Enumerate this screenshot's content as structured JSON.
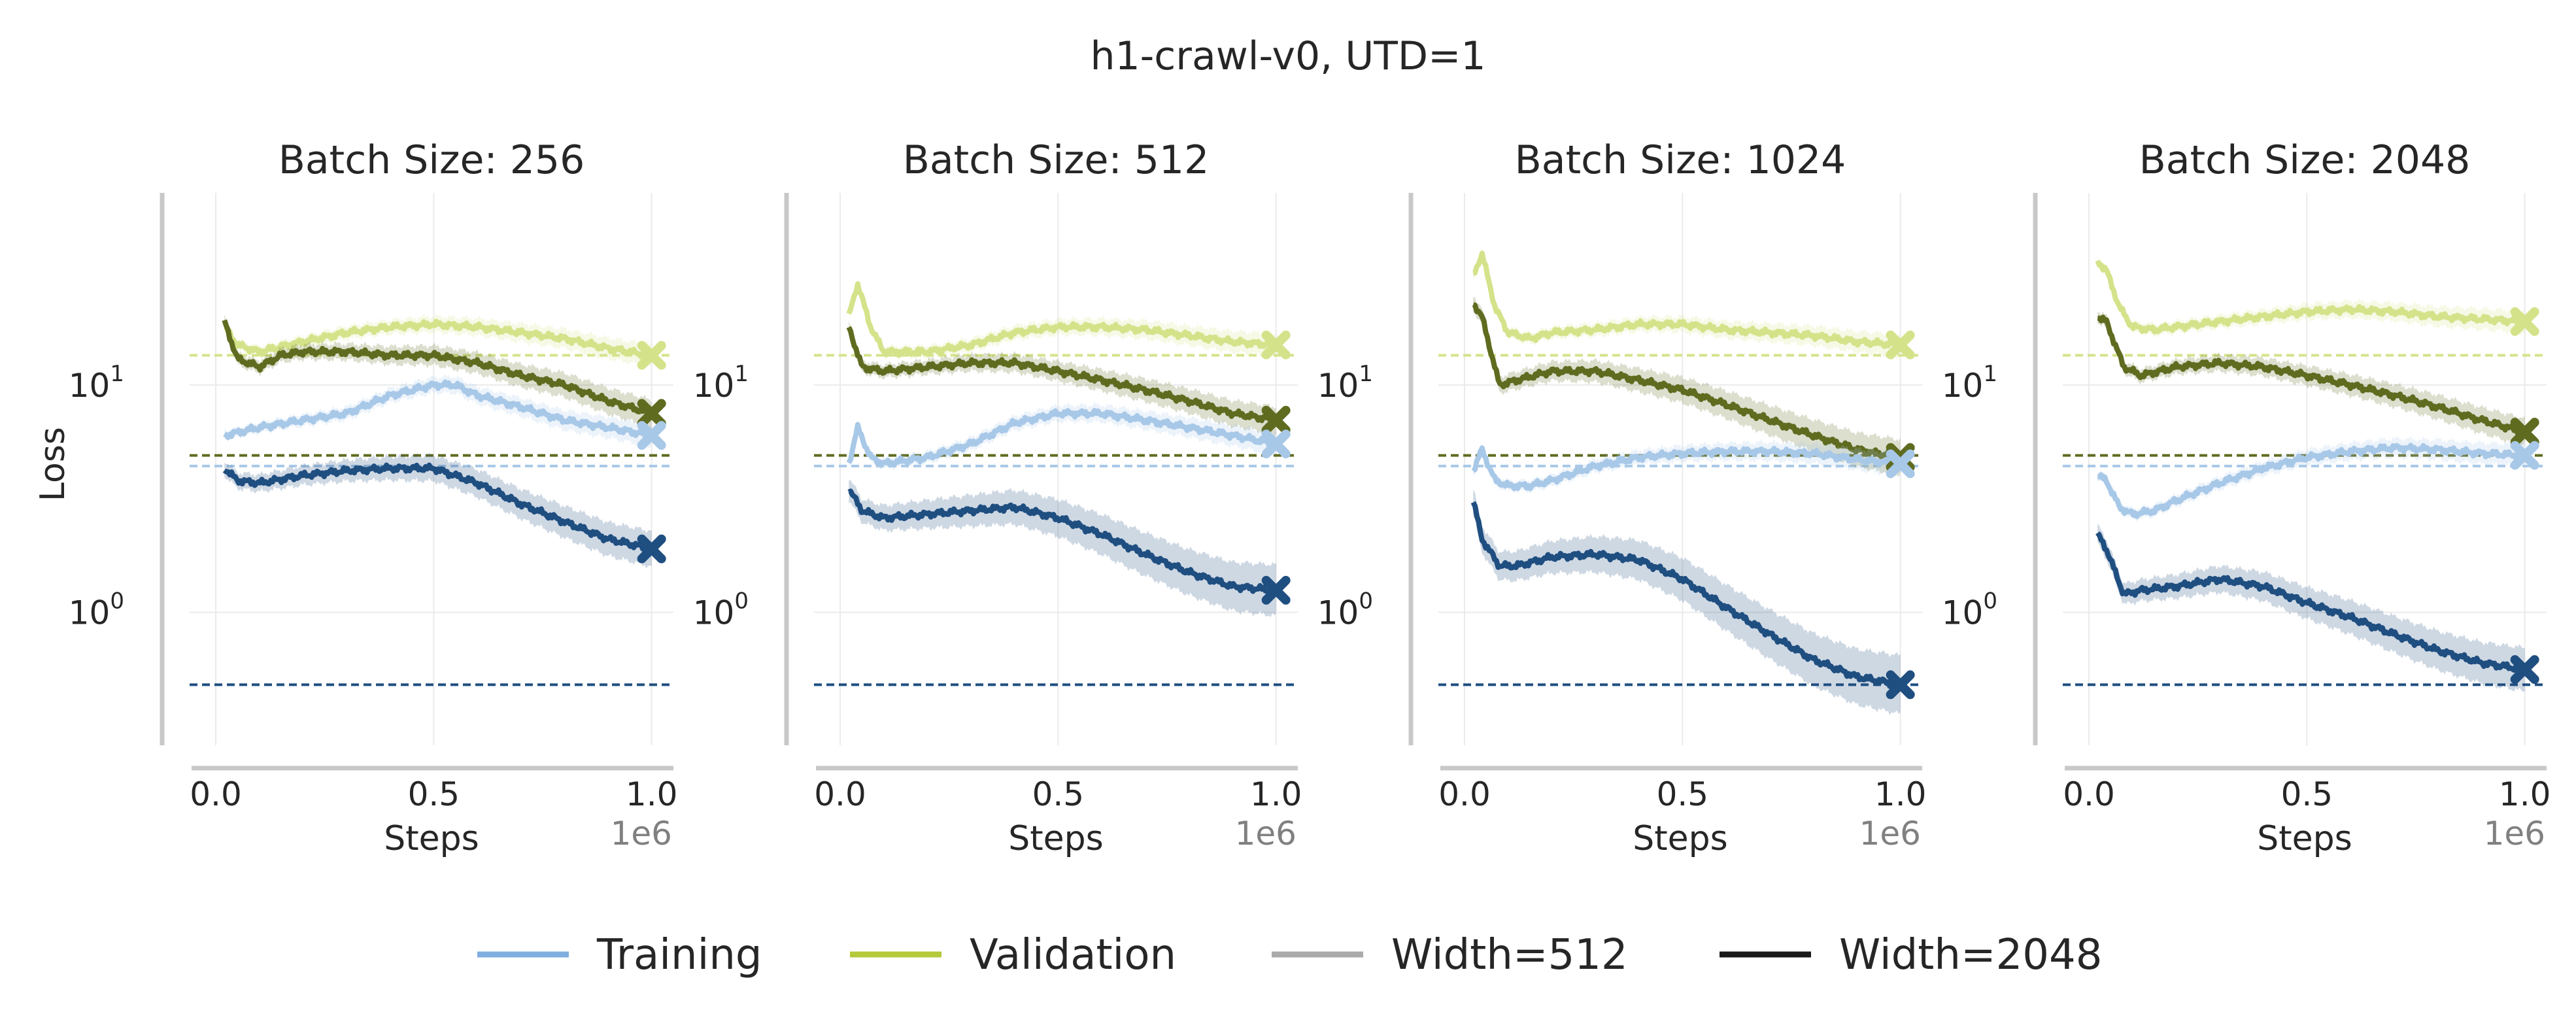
{
  "figure": {
    "title": "h1-crawl-v0, UTD=1",
    "ylabel": "Loss",
    "xlabel": "Steps",
    "x_offset_label": "1e6",
    "x_tick_labels": [
      "0.0",
      "0.5",
      "1.0"
    ],
    "y_tick_base": "10",
    "y_tick_exponents": [
      "0",
      "1"
    ],
    "colors": {
      "train_512": "#a8c8e8",
      "train_2048": "#1f4e80",
      "val_512": "#d4e38a",
      "val_2048": "#5f6b1f",
      "legend_training": "#80aee0",
      "legend_validation": "#b5c93a",
      "legend_width512": "#aaaaaa",
      "legend_width2048": "#1a1a1a",
      "axis": "#c8c8c8",
      "grid": "#ebebeb"
    }
  },
  "legend": [
    {
      "label": "Training",
      "color_key": "legend_training"
    },
    {
      "label": "Validation",
      "color_key": "legend_validation"
    },
    {
      "label": "Width=512",
      "color_key": "legend_width512"
    },
    {
      "label": "Width=2048",
      "color_key": "legend_width2048"
    }
  ],
  "chart_data": [
    {
      "type": "line",
      "title": "Batch Size: 256",
      "xlim": [
        -0.06,
        1.05
      ],
      "ylim": [
        0.26,
        70
      ],
      "yscale": "log",
      "reference_lines": {
        "train_512": 4.4,
        "train_2048": 0.48,
        "val_512": 13.5,
        "val_2048": 4.9
      },
      "series": [
        {
          "name": "Validation Width=512",
          "color_key": "val_512",
          "x": [
            0.02,
            0.05,
            0.1,
            0.2,
            0.3,
            0.4,
            0.5,
            0.6,
            0.7,
            0.8,
            0.9,
            1.0
          ],
          "y": [
            18,
            15,
            14,
            15.5,
            17,
            18,
            18.5,
            18,
            17,
            16,
            14.5,
            13.5
          ],
          "band": 0.12
        },
        {
          "name": "Validation Width=2048",
          "color_key": "val_2048",
          "x": [
            0.02,
            0.05,
            0.1,
            0.15,
            0.2,
            0.3,
            0.4,
            0.5,
            0.6,
            0.7,
            0.8,
            0.9,
            1.0
          ],
          "y": [
            19,
            13,
            12,
            13.5,
            14,
            14,
            13.5,
            13.5,
            12.5,
            11,
            10,
            8.5,
            7.5
          ],
          "band": 0.15
        },
        {
          "name": "Training Width=512",
          "color_key": "train_512",
          "x": [
            0.02,
            0.1,
            0.2,
            0.3,
            0.4,
            0.5,
            0.55,
            0.6,
            0.7,
            0.8,
            0.9,
            1.0
          ],
          "y": [
            6,
            6.5,
            7,
            7.5,
            9,
            10,
            10,
            9,
            8,
            7,
            6.5,
            6
          ],
          "band": 0.12
        },
        {
          "name": "Training Width=2048",
          "color_key": "train_2048",
          "x": [
            0.02,
            0.05,
            0.1,
            0.2,
            0.3,
            0.4,
            0.5,
            0.6,
            0.7,
            0.8,
            0.9,
            1.0
          ],
          "y": [
            4.3,
            3.8,
            3.7,
            4.0,
            4.2,
            4.3,
            4.3,
            3.7,
            3.0,
            2.5,
            2.1,
            1.9
          ],
          "band": 0.2
        }
      ],
      "end_markers": [
        13.5,
        7.5,
        6,
        1.9
      ]
    },
    {
      "type": "line",
      "title": "Batch Size: 512",
      "xlim": [
        -0.06,
        1.05
      ],
      "ylim": [
        0.26,
        70
      ],
      "yscale": "log",
      "reference_lines": {
        "train_512": 4.4,
        "train_2048": 0.48,
        "val_512": 13.5,
        "val_2048": 4.9
      },
      "series": [
        {
          "name": "Validation Width=512",
          "color_key": "val_512",
          "x": [
            0.02,
            0.04,
            0.07,
            0.1,
            0.2,
            0.3,
            0.4,
            0.5,
            0.6,
            0.7,
            0.8,
            0.9,
            1.0
          ],
          "y": [
            20,
            28,
            18,
            14,
            14,
            15,
            17,
            18,
            18,
            17.5,
            16.5,
            15.5,
            15
          ],
          "band": 0.12
        },
        {
          "name": "Validation Width=2048",
          "color_key": "val_2048",
          "x": [
            0.02,
            0.05,
            0.1,
            0.2,
            0.3,
            0.4,
            0.5,
            0.6,
            0.7,
            0.8,
            0.9,
            1.0
          ],
          "y": [
            18,
            12,
            11.5,
            12,
            12.5,
            12.5,
            11.5,
            10.5,
            9.5,
            8.5,
            7.5,
            7
          ],
          "band": 0.15
        },
        {
          "name": "Training Width=512",
          "color_key": "train_512",
          "x": [
            0.02,
            0.04,
            0.07,
            0.1,
            0.2,
            0.3,
            0.4,
            0.5,
            0.6,
            0.7,
            0.8,
            0.9,
            1.0
          ],
          "y": [
            4.5,
            6.5,
            4.8,
            4.5,
            4.8,
            5.5,
            6.8,
            7.5,
            7.5,
            7,
            6.5,
            6,
            5.5
          ],
          "band": 0.12
        },
        {
          "name": "Training Width=2048",
          "color_key": "train_2048",
          "x": [
            0.02,
            0.05,
            0.1,
            0.2,
            0.3,
            0.4,
            0.5,
            0.6,
            0.7,
            0.8,
            0.9,
            1.0
          ],
          "y": [
            3.5,
            2.8,
            2.6,
            2.7,
            2.8,
            2.9,
            2.6,
            2.2,
            1.8,
            1.5,
            1.3,
            1.25
          ],
          "band": 0.3
        }
      ],
      "end_markers": [
        15,
        7,
        5.5,
        1.25
      ]
    },
    {
      "type": "line",
      "title": "Batch Size: 1024",
      "xlim": [
        -0.06,
        1.05
      ],
      "ylim": [
        0.26,
        70
      ],
      "yscale": "log",
      "reference_lines": {
        "train_512": 4.4,
        "train_2048": 0.48,
        "val_512": 13.5,
        "val_2048": 4.9
      },
      "series": [
        {
          "name": "Validation Width=512",
          "color_key": "val_512",
          "x": [
            0.02,
            0.04,
            0.07,
            0.1,
            0.15,
            0.2,
            0.3,
            0.4,
            0.5,
            0.6,
            0.7,
            0.8,
            0.9,
            1.0
          ],
          "y": [
            30,
            38,
            22,
            17,
            16,
            17,
            17.5,
            18.5,
            18.5,
            17.5,
            17,
            16.5,
            15.5,
            15
          ],
          "band": 0.12
        },
        {
          "name": "Validation Width=2048",
          "color_key": "val_2048",
          "x": [
            0.02,
            0.04,
            0.08,
            0.12,
            0.2,
            0.3,
            0.4,
            0.5,
            0.6,
            0.7,
            0.8,
            0.9,
            1.0
          ],
          "y": [
            23,
            20,
            10,
            10.5,
            11.5,
            11.5,
            10.5,
            9.5,
            8.2,
            7,
            6,
            5.2,
            4.8
          ],
          "band": 0.2
        },
        {
          "name": "Training Width=512",
          "color_key": "train_512",
          "x": [
            0.02,
            0.04,
            0.07,
            0.1,
            0.15,
            0.2,
            0.3,
            0.4,
            0.5,
            0.6,
            0.7,
            0.8,
            0.9,
            1.0
          ],
          "y": [
            4.2,
            5.2,
            3.8,
            3.6,
            3.6,
            3.8,
            4.4,
            4.8,
            5,
            5.1,
            5.1,
            5,
            4.7,
            4.5
          ],
          "band": 0.12
        },
        {
          "name": "Training Width=2048",
          "color_key": "train_2048",
          "x": [
            0.02,
            0.04,
            0.08,
            0.12,
            0.2,
            0.3,
            0.4,
            0.5,
            0.6,
            0.7,
            0.8,
            0.9,
            1.0
          ],
          "y": [
            3.1,
            2.1,
            1.6,
            1.6,
            1.75,
            1.8,
            1.7,
            1.4,
            1.05,
            0.8,
            0.62,
            0.52,
            0.48
          ],
          "band": 0.35
        }
      ],
      "end_markers": [
        15,
        4.8,
        4.5,
        0.48
      ]
    },
    {
      "type": "line",
      "title": "Batch Size: 2048",
      "xlim": [
        -0.06,
        1.05
      ],
      "ylim": [
        0.26,
        70
      ],
      "yscale": "log",
      "reference_lines": {
        "train_512": 4.4,
        "train_2048": 0.48,
        "val_512": 13.5,
        "val_2048": 4.9
      },
      "series": [
        {
          "name": "Validation Width=512",
          "color_key": "val_512",
          "x": [
            0.02,
            0.04,
            0.07,
            0.1,
            0.15,
            0.2,
            0.3,
            0.4,
            0.5,
            0.6,
            0.7,
            0.8,
            0.9,
            1.0
          ],
          "y": [
            35,
            32,
            22,
            18,
            17.5,
            18,
            19,
            20,
            21,
            21.5,
            21,
            20,
            19.5,
            19
          ],
          "band": 0.12
        },
        {
          "name": "Validation Width=2048",
          "color_key": "val_2048",
          "x": [
            0.02,
            0.04,
            0.08,
            0.12,
            0.2,
            0.3,
            0.4,
            0.5,
            0.6,
            0.7,
            0.8,
            0.9,
            1.0
          ],
          "y": [
            20,
            19,
            12,
            11,
            12,
            12.5,
            12,
            11,
            10,
            9,
            8,
            7,
            6.2
          ],
          "band": 0.15
        },
        {
          "name": "Training Width=512",
          "color_key": "train_512",
          "x": [
            0.02,
            0.04,
            0.07,
            0.1,
            0.15,
            0.2,
            0.3,
            0.4,
            0.5,
            0.6,
            0.7,
            0.8,
            0.9,
            1.0
          ],
          "y": [
            4,
            3.8,
            2.9,
            2.7,
            2.8,
            3.1,
            3.7,
            4.3,
            4.8,
            5.1,
            5.3,
            5.2,
            5,
            4.9
          ],
          "band": 0.12
        },
        {
          "name": "Training Width=2048",
          "color_key": "train_2048",
          "x": [
            0.02,
            0.04,
            0.08,
            0.12,
            0.2,
            0.3,
            0.4,
            0.5,
            0.6,
            0.7,
            0.8,
            0.9,
            1.0
          ],
          "y": [
            2.2,
            1.9,
            1.2,
            1.25,
            1.3,
            1.4,
            1.3,
            1.1,
            0.95,
            0.8,
            0.68,
            0.6,
            0.56
          ],
          "band": 0.25
        }
      ],
      "end_markers": [
        19,
        6.2,
        4.9,
        0.56
      ]
    }
  ]
}
